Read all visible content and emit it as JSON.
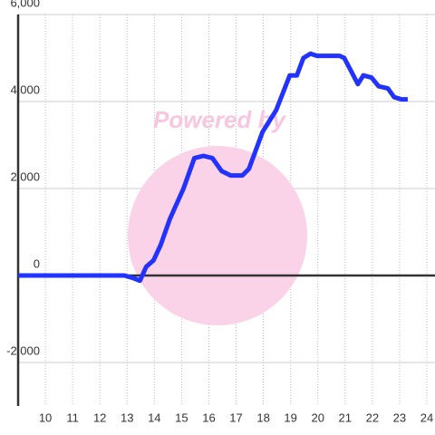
{
  "chart_data": {
    "type": "line",
    "watermark": "Powered by",
    "x": [
      9,
      12.9,
      13.23,
      13.47,
      13.7,
      13.97,
      14.23,
      14.57,
      15.07,
      15.47,
      15.8,
      16.13,
      16.47,
      16.8,
      17.23,
      17.47,
      17.97,
      18.47,
      18.97,
      19.23,
      19.47,
      19.73,
      19.97,
      20.8,
      20.97,
      21.47,
      21.67,
      21.97,
      22.23,
      22.57,
      22.8,
      23.07,
      23.3
    ],
    "series": [
      {
        "color": "#2233ff",
        "values": [
          0,
          0,
          -60,
          -120,
          200,
          350,
          700,
          1300,
          2000,
          2700,
          2750,
          2700,
          2400,
          2300,
          2300,
          2450,
          3300,
          3800,
          4600,
          4600,
          5000,
          5100,
          5050,
          5050,
          5000,
          4400,
          4600,
          4550,
          4350,
          4300,
          4100,
          4050,
          4050
        ]
      }
    ],
    "xlim": [
      9,
      24.3
    ],
    "xticks": [
      10,
      11,
      12,
      13,
      14,
      15,
      16,
      17,
      18,
      19,
      20,
      21,
      22,
      23,
      24
    ],
    "ylim": [
      -3000,
      6000
    ],
    "yticks": [
      {
        "value": -2000,
        "label": "-2,000"
      },
      0,
      {
        "value": 2000,
        "label": "2,000"
      },
      {
        "value": 4000,
        "label": "4,000"
      },
      {
        "value": 6000,
        "label": "6,000"
      }
    ],
    "grid": true
  }
}
